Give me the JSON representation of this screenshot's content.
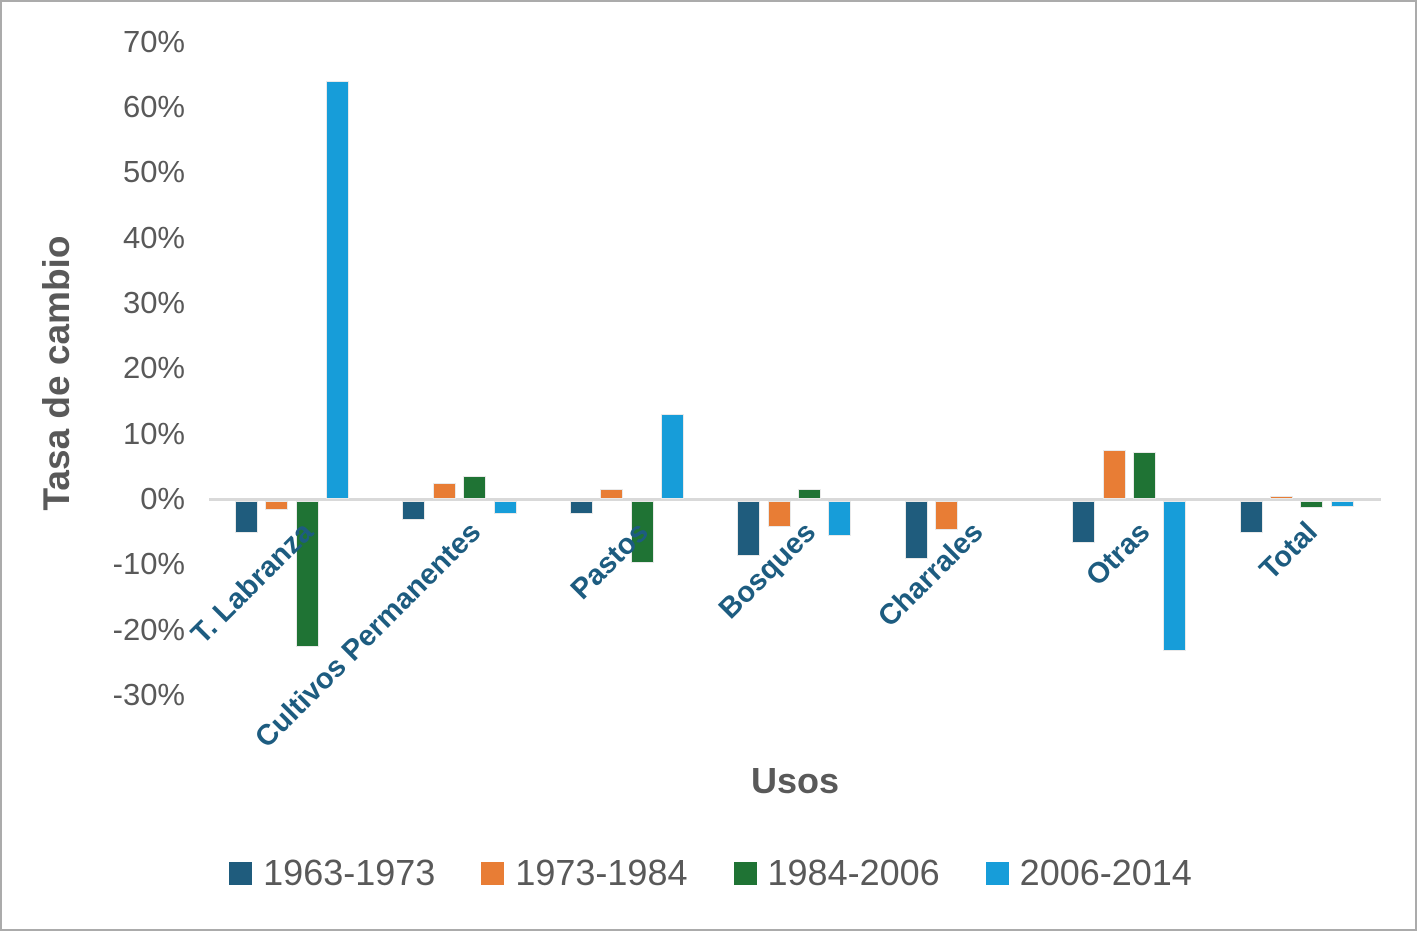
{
  "chart_data": {
    "type": "bar",
    "title": "",
    "xlabel": "Usos",
    "ylabel": "Tasa de cambio",
    "categories": [
      "T. Labranza",
      "Cultivos Permanentes",
      "Pastos",
      "Bosques",
      "Charrales",
      "Otras",
      "Total"
    ],
    "series": [
      {
        "name": "1963-1973",
        "color": "#1f5c7d",
        "values": [
          -5,
          -3,
          -2,
          -8.5,
          -9,
          -6.5,
          -5
        ]
      },
      {
        "name": "1973-1984",
        "color": "#e87d35",
        "values": [
          -1.5,
          2.5,
          1.5,
          -4,
          -4.5,
          7.5,
          0.4
        ]
      },
      {
        "name": "1984-2006",
        "color": "#1f7334",
        "values": [
          -22.4,
          3.5,
          -9.5,
          1.5,
          0,
          7.2,
          -1.2
        ]
      },
      {
        "name": "2006-2014",
        "color": "#179dd9",
        "values": [
          64,
          -2,
          13,
          -5.5,
          0,
          -23,
          -1
        ]
      }
    ],
    "ylim": [
      -30,
      70
    ],
    "yticks": [
      70,
      60,
      50,
      40,
      30,
      20,
      10,
      0,
      -10,
      -20,
      -30
    ],
    "ytick_suffix": "%",
    "grid": false,
    "legend_position": "bottom",
    "colors": {
      "axis_line": "#d9d9d9",
      "tick_text": "#595959",
      "axis_title_text": "#595959",
      "category_text": "#1d5c80",
      "legend_text": "#595959"
    }
  }
}
